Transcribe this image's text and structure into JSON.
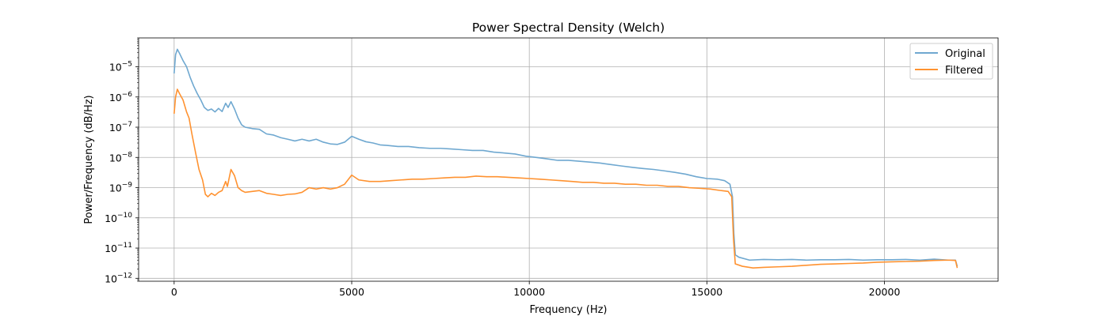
{
  "chart_data": {
    "type": "line",
    "title": "Power Spectral Density (Welch)",
    "xlabel": "Frequency (Hz)",
    "ylabel": "Power/Frequency (dB/Hz)",
    "xlim": [
      -1000,
      23200
    ],
    "ylim": [
      8e-13,
      9e-05
    ],
    "yscale": "log",
    "grid": true,
    "legend_position": "top-right",
    "x_ticks": [
      {
        "value": 0,
        "label": "0"
      },
      {
        "value": 5000,
        "label": "5000"
      },
      {
        "value": 10000,
        "label": "10000"
      },
      {
        "value": 15000,
        "label": "15000"
      },
      {
        "value": 20000,
        "label": "20000"
      }
    ],
    "y_ticks": [
      {
        "value": 1e-12,
        "base": "10",
        "exp": "−12"
      },
      {
        "value": 1e-11,
        "base": "10",
        "exp": "−11"
      },
      {
        "value": 1e-10,
        "base": "10",
        "exp": "−10"
      },
      {
        "value": 1e-09,
        "base": "10",
        "exp": "−9"
      },
      {
        "value": 1e-08,
        "base": "10",
        "exp": "−8"
      },
      {
        "value": 1e-07,
        "base": "10",
        "exp": "−7"
      },
      {
        "value": 1e-06,
        "base": "10",
        "exp": "−6"
      },
      {
        "value": 1e-05,
        "base": "10",
        "exp": "−5"
      }
    ],
    "series": [
      {
        "name": "Original",
        "color": "#6fa8d0",
        "points": [
          [
            0,
            6e-06
          ],
          [
            40,
            2.5e-05
          ],
          [
            90,
            3.8e-05
          ],
          [
            150,
            2.8e-05
          ],
          [
            250,
            1.6e-05
          ],
          [
            350,
            1e-05
          ],
          [
            450,
            4.5e-06
          ],
          [
            550,
            2.3e-06
          ],
          [
            650,
            1.3e-06
          ],
          [
            750,
            8e-07
          ],
          [
            850,
            4.5e-07
          ],
          [
            950,
            3.6e-07
          ],
          [
            1050,
            4e-07
          ],
          [
            1150,
            3.2e-07
          ],
          [
            1250,
            4.2e-07
          ],
          [
            1350,
            3.3e-07
          ],
          [
            1450,
            6.2e-07
          ],
          [
            1520,
            4.5e-07
          ],
          [
            1600,
            7e-07
          ],
          [
            1700,
            4e-07
          ],
          [
            1800,
            2e-07
          ],
          [
            1900,
            1.2e-07
          ],
          [
            2000,
            1e-07
          ],
          [
            2200,
            9e-08
          ],
          [
            2400,
            8.5e-08
          ],
          [
            2600,
            6e-08
          ],
          [
            2800,
            5.5e-08
          ],
          [
            3000,
            4.5e-08
          ],
          [
            3200,
            4e-08
          ],
          [
            3400,
            3.5e-08
          ],
          [
            3600,
            4e-08
          ],
          [
            3800,
            3.5e-08
          ],
          [
            4000,
            4e-08
          ],
          [
            4200,
            3.2e-08
          ],
          [
            4400,
            2.8e-08
          ],
          [
            4600,
            2.7e-08
          ],
          [
            4800,
            3.2e-08
          ],
          [
            5000,
            5e-08
          ],
          [
            5200,
            4e-08
          ],
          [
            5400,
            3.3e-08
          ],
          [
            5600,
            3e-08
          ],
          [
            5800,
            2.6e-08
          ],
          [
            6000,
            2.5e-08
          ],
          [
            6300,
            2.3e-08
          ],
          [
            6600,
            2.3e-08
          ],
          [
            6900,
            2.1e-08
          ],
          [
            7200,
            2e-08
          ],
          [
            7500,
            2e-08
          ],
          [
            7800,
            1.9e-08
          ],
          [
            8100,
            1.8e-08
          ],
          [
            8400,
            1.7e-08
          ],
          [
            8700,
            1.7e-08
          ],
          [
            9000,
            1.5e-08
          ],
          [
            9300,
            1.4e-08
          ],
          [
            9600,
            1.3e-08
          ],
          [
            9900,
            1.1e-08
          ],
          [
            10200,
            1e-08
          ],
          [
            10500,
            9e-09
          ],
          [
            10800,
            8e-09
          ],
          [
            11100,
            8e-09
          ],
          [
            11400,
            7.5e-09
          ],
          [
            11700,
            7e-09
          ],
          [
            12000,
            6.5e-09
          ],
          [
            12300,
            5.8e-09
          ],
          [
            12600,
            5.2e-09
          ],
          [
            12900,
            4.7e-09
          ],
          [
            13200,
            4.3e-09
          ],
          [
            13500,
            4e-09
          ],
          [
            13800,
            3.6e-09
          ],
          [
            14100,
            3.2e-09
          ],
          [
            14400,
            2.8e-09
          ],
          [
            14700,
            2.3e-09
          ],
          [
            15000,
            2e-09
          ],
          [
            15300,
            1.9e-09
          ],
          [
            15500,
            1.7e-09
          ],
          [
            15650,
            1.3e-09
          ],
          [
            15720,
            5e-10
          ],
          [
            15760,
            3e-11
          ],
          [
            15800,
            6e-12
          ],
          [
            15900,
            5e-12
          ],
          [
            16200,
            4e-12
          ],
          [
            16600,
            4.2e-12
          ],
          [
            17000,
            4.1e-12
          ],
          [
            17400,
            4.2e-12
          ],
          [
            17800,
            4e-12
          ],
          [
            18200,
            4.1e-12
          ],
          [
            18600,
            4.1e-12
          ],
          [
            19000,
            4.2e-12
          ],
          [
            19400,
            4e-12
          ],
          [
            19800,
            4.1e-12
          ],
          [
            20200,
            4.1e-12
          ],
          [
            20600,
            4.2e-12
          ],
          [
            21000,
            4e-12
          ],
          [
            21400,
            4.3e-12
          ],
          [
            21800,
            4e-12
          ],
          [
            22000,
            4e-12
          ],
          [
            22050,
            2.5e-12
          ]
        ]
      },
      {
        "name": "Filtered",
        "color": "#ff9230",
        "points": [
          [
            0,
            2.8e-07
          ],
          [
            40,
            1e-06
          ],
          [
            90,
            1.8e-06
          ],
          [
            150,
            1.3e-06
          ],
          [
            250,
            8e-07
          ],
          [
            350,
            3.2e-07
          ],
          [
            420,
            2e-07
          ],
          [
            500,
            6e-08
          ],
          [
            600,
            1.5e-08
          ],
          [
            700,
            4e-09
          ],
          [
            800,
            1.8e-09
          ],
          [
            880,
            6e-10
          ],
          [
            950,
            5e-10
          ],
          [
            1050,
            6.5e-10
          ],
          [
            1150,
            5.5e-10
          ],
          [
            1250,
            7e-10
          ],
          [
            1350,
            8e-10
          ],
          [
            1450,
            1.6e-09
          ],
          [
            1500,
            1.1e-09
          ],
          [
            1600,
            4e-09
          ],
          [
            1700,
            2.5e-09
          ],
          [
            1800,
            1e-09
          ],
          [
            1900,
            8e-10
          ],
          [
            2000,
            7e-10
          ],
          [
            2200,
            7.5e-10
          ],
          [
            2400,
            8e-10
          ],
          [
            2600,
            6.5e-10
          ],
          [
            2800,
            6e-10
          ],
          [
            3000,
            5.5e-10
          ],
          [
            3200,
            6e-10
          ],
          [
            3400,
            6.2e-10
          ],
          [
            3600,
            7e-10
          ],
          [
            3800,
            1e-09
          ],
          [
            4000,
            9e-10
          ],
          [
            4200,
            1e-09
          ],
          [
            4400,
            9e-10
          ],
          [
            4600,
            1e-09
          ],
          [
            4800,
            1.3e-09
          ],
          [
            5000,
            2.6e-09
          ],
          [
            5200,
            1.8e-09
          ],
          [
            5500,
            1.6e-09
          ],
          [
            5800,
            1.6e-09
          ],
          [
            6100,
            1.7e-09
          ],
          [
            6400,
            1.8e-09
          ],
          [
            6700,
            1.9e-09
          ],
          [
            7000,
            1.9e-09
          ],
          [
            7300,
            2e-09
          ],
          [
            7600,
            2.1e-09
          ],
          [
            7900,
            2.2e-09
          ],
          [
            8200,
            2.2e-09
          ],
          [
            8500,
            2.4e-09
          ],
          [
            8800,
            2.3e-09
          ],
          [
            9100,
            2.3e-09
          ],
          [
            9400,
            2.2e-09
          ],
          [
            9700,
            2.1e-09
          ],
          [
            10000,
            2e-09
          ],
          [
            10300,
            1.9e-09
          ],
          [
            10600,
            1.8e-09
          ],
          [
            10900,
            1.7e-09
          ],
          [
            11200,
            1.6e-09
          ],
          [
            11500,
            1.5e-09
          ],
          [
            11800,
            1.5e-09
          ],
          [
            12100,
            1.4e-09
          ],
          [
            12400,
            1.4e-09
          ],
          [
            12700,
            1.3e-09
          ],
          [
            13000,
            1.3e-09
          ],
          [
            13300,
            1.2e-09
          ],
          [
            13600,
            1.2e-09
          ],
          [
            13900,
            1.1e-09
          ],
          [
            14200,
            1.1e-09
          ],
          [
            14500,
            1e-09
          ],
          [
            14800,
            9.5e-10
          ],
          [
            15100,
            9e-10
          ],
          [
            15400,
            8e-10
          ],
          [
            15600,
            7.5e-10
          ],
          [
            15700,
            5e-10
          ],
          [
            15750,
            2e-11
          ],
          [
            15800,
            3e-12
          ],
          [
            16000,
            2.5e-12
          ],
          [
            16300,
            2.2e-12
          ],
          [
            16600,
            2.3e-12
          ],
          [
            17000,
            2.4e-12
          ],
          [
            17400,
            2.5e-12
          ],
          [
            17800,
            2.7e-12
          ],
          [
            18200,
            2.9e-12
          ],
          [
            18600,
            3e-12
          ],
          [
            19000,
            3.1e-12
          ],
          [
            19400,
            3.2e-12
          ],
          [
            19800,
            3.4e-12
          ],
          [
            20200,
            3.5e-12
          ],
          [
            20600,
            3.6e-12
          ],
          [
            21000,
            3.7e-12
          ],
          [
            21400,
            3.9e-12
          ],
          [
            21800,
            4e-12
          ],
          [
            22000,
            3.9e-12
          ],
          [
            22050,
            2.2e-12
          ]
        ]
      }
    ]
  }
}
